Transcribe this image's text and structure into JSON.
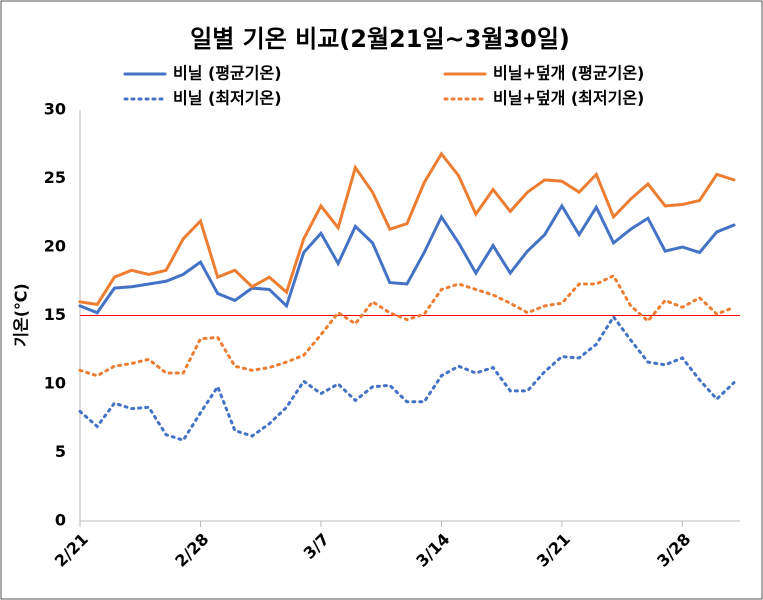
{
  "chart_data": {
    "type": "line",
    "title": "일별 기온 비교(2월21일~3월30일)",
    "y_label": "기온(℃)",
    "categories": [
      "2/21",
      null,
      null,
      null,
      null,
      null,
      null,
      "2/28",
      null,
      null,
      null,
      null,
      null,
      null,
      "3/7",
      null,
      null,
      null,
      null,
      null,
      null,
      "3/14",
      null,
      null,
      null,
      null,
      null,
      null,
      "3/21",
      null,
      null,
      null,
      null,
      null,
      null,
      "3/28",
      null,
      null,
      null
    ],
    "series": [
      {
        "name": "비닐 (평균기온)",
        "color": "#4472c4",
        "dash": "solid",
        "values": [
          15.7,
          15.2,
          17.0,
          17.1,
          17.3,
          17.5,
          18.0,
          18.9,
          16.6,
          16.1,
          17.0,
          16.9,
          15.7,
          19.6,
          21.0,
          18.8,
          21.5,
          20.3,
          17.4,
          17.3,
          19.6,
          22.2,
          20.3,
          18.1,
          20.1,
          18.1,
          19.7,
          20.9,
          23.0,
          20.9,
          22.9,
          20.3,
          21.3,
          22.1,
          19.7,
          20.0,
          19.6,
          21.1,
          21.6
        ]
      },
      {
        "name": "비닐+덮개 (평균기온)",
        "color": "#ed7d31",
        "dash": "solid",
        "values": [
          16.0,
          15.8,
          17.8,
          18.3,
          18.0,
          18.3,
          20.6,
          21.9,
          17.8,
          18.3,
          17.1,
          17.8,
          16.7,
          20.6,
          23.0,
          21.4,
          25.8,
          24.0,
          21.3,
          21.7,
          24.7,
          26.8,
          25.2,
          22.4,
          24.2,
          22.6,
          24.0,
          24.9,
          24.8,
          24.0,
          25.3,
          22.2,
          23.5,
          24.6,
          23.0,
          23.1,
          23.4,
          25.3,
          24.9
        ]
      },
      {
        "name": "비닐 (최저기온)",
        "color": "#4472c4",
        "dash": "dotted",
        "values": [
          8.0,
          6.9,
          8.6,
          8.2,
          8.3,
          6.3,
          5.9,
          7.9,
          9.8,
          6.6,
          6.2,
          7.1,
          8.3,
          10.2,
          9.3,
          10.0,
          8.8,
          9.8,
          9.9,
          8.7,
          8.7,
          10.6,
          11.3,
          10.8,
          11.2,
          9.5,
          9.5,
          10.9,
          12.0,
          11.9,
          12.9,
          14.9,
          13.2,
          11.6,
          11.4,
          11.9,
          10.3,
          8.9,
          10.1
        ]
      },
      {
        "name": "비닐+덮개 (최저기온)",
        "color": "#ed7d31",
        "dash": "dotted",
        "values": [
          11.0,
          10.6,
          11.3,
          11.5,
          11.8,
          10.8,
          10.8,
          13.3,
          13.4,
          11.3,
          11.0,
          11.2,
          11.6,
          12.1,
          13.6,
          15.2,
          14.4,
          16.0,
          15.2,
          14.7,
          15.1,
          16.9,
          17.3,
          16.9,
          16.5,
          15.9,
          15.2,
          15.7,
          15.9,
          17.3,
          17.3,
          17.9,
          15.7,
          14.6,
          16.1,
          15.6,
          16.3,
          15.1,
          15.6
        ]
      }
    ],
    "ylim": [
      0,
      30
    ],
    "yticks": [
      0,
      5,
      10,
      15,
      20,
      25,
      30
    ],
    "grid": false,
    "reference_line": {
      "value": 15,
      "color": "#ff0000"
    }
  }
}
